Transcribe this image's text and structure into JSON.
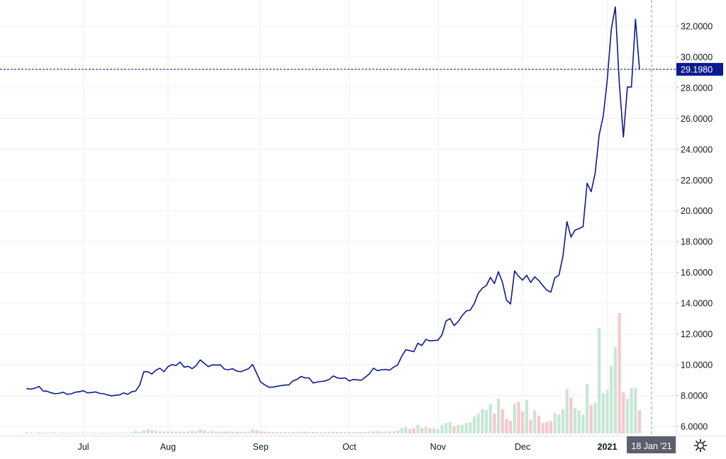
{
  "chart_data": {
    "type": "line",
    "ylim": [
      5.4,
      33.7
    ],
    "y_ticks": [
      "32.0000",
      "30.0000",
      "28.0000",
      "26.0000",
      "24.0000",
      "22.0000",
      "20.0000",
      "18.0000",
      "16.0000",
      "14.0000",
      "12.0000",
      "10.0000",
      "8.0000",
      "6.0000"
    ],
    "x_ticks": [
      {
        "label": "Jul",
        "index": 14
      },
      {
        "label": "Aug",
        "index": 35
      },
      {
        "label": "Sep",
        "index": 58
      },
      {
        "label": "Oct",
        "index": 80
      },
      {
        "label": "Nov",
        "index": 102
      },
      {
        "label": "Dec",
        "index": 123
      },
      {
        "label": "2021",
        "index": 144
      }
    ],
    "crosshair": {
      "y_value": 29.198,
      "y_label": "29.1980",
      "x_label": "18 Jan '21",
      "index": 155
    },
    "series": [
      {
        "values": [
          8.45,
          8.42,
          8.48,
          8.6,
          8.3,
          8.28,
          8.18,
          8.12,
          8.15,
          8.22,
          8.08,
          8.12,
          8.22,
          8.25,
          8.32,
          8.18,
          8.2,
          8.24,
          8.15,
          8.12,
          8.05,
          7.98,
          8.02,
          8.05,
          8.18,
          8.08,
          8.25,
          8.3,
          8.7,
          9.55,
          9.55,
          9.4,
          9.65,
          9.78,
          9.55,
          9.88,
          10.02,
          9.95,
          10.18,
          9.85,
          9.9,
          9.75,
          9.95,
          10.32,
          10.1,
          9.88,
          10.0,
          9.98,
          10.0,
          9.72,
          9.68,
          9.75,
          9.6,
          9.55,
          9.65,
          9.75,
          10.02,
          9.45,
          8.88,
          8.7,
          8.55,
          8.55,
          8.6,
          8.65,
          8.68,
          8.7,
          8.95,
          9.05,
          9.25,
          9.15,
          9.15,
          8.82,
          8.88,
          8.92,
          8.95,
          9.05,
          9.28,
          9.15,
          9.12,
          9.15,
          8.95,
          9.05,
          9.02,
          9.0,
          9.2,
          9.42,
          9.78,
          9.62,
          9.68,
          9.7,
          9.65,
          9.85,
          10.0,
          10.55,
          10.98,
          10.92,
          10.85,
          11.4,
          11.25,
          11.65,
          11.55,
          11.58,
          11.6,
          11.95,
          12.85,
          13.0,
          12.55,
          12.8,
          13.2,
          13.5,
          13.55,
          13.98,
          14.65,
          14.98,
          15.15,
          15.68,
          15.28,
          16.05,
          15.35,
          14.2,
          13.95,
          16.1,
          15.75,
          15.5,
          15.82,
          15.35,
          15.72,
          15.48,
          15.15,
          14.85,
          14.72,
          15.65,
          15.82,
          17.05,
          19.3,
          18.3,
          18.75,
          18.85,
          18.98,
          21.8,
          21.25,
          22.45,
          24.95,
          26.15,
          28.5,
          31.8,
          33.25,
          28.25,
          24.8,
          28.05,
          28.05,
          32.45,
          29.2
        ],
        "volume": [
          0.6,
          0.4,
          0.3,
          0.5,
          0.4,
          0.3,
          0.4,
          0.5,
          0.3,
          0.4,
          0.3,
          0.3,
          0.4,
          0.3,
          0.4,
          0.3,
          0.3,
          0.4,
          0.3,
          0.4,
          0.3,
          0.3,
          0.3,
          0.4,
          0.5,
          0.3,
          0.6,
          1.2,
          0.8,
          1.5,
          2.0,
          1.5,
          1.2,
          1.0,
          0.8,
          0.9,
          0.9,
          0.7,
          0.9,
          0.8,
          1.0,
          1.2,
          1.0,
          2.0,
          1.5,
          0.8,
          1.2,
          0.9,
          0.8,
          0.9,
          1.0,
          0.8,
          0.9,
          0.7,
          0.8,
          0.9,
          2.0,
          1.5,
          1.0,
          0.8,
          0.7,
          0.7,
          0.6,
          0.6,
          0.6,
          0.6,
          0.7,
          0.7,
          0.8,
          0.8,
          0.6,
          0.7,
          0.6,
          0.6,
          0.6,
          0.7,
          0.9,
          0.7,
          0.6,
          0.6,
          0.6,
          0.6,
          0.6,
          0.6,
          0.7,
          0.9,
          1.0,
          1.0,
          0.8,
          0.9,
          0.9,
          1.0,
          1.4,
          2.5,
          3.0,
          2.2,
          2.5,
          4.0,
          2.5,
          3.2,
          2.5,
          2.5,
          2.0,
          4.0,
          5.0,
          5.5,
          3.5,
          4.0,
          4.2,
          5.0,
          5.2,
          8.0,
          9.5,
          11.5,
          11.0,
          14.0,
          9.5,
          16.5,
          11.5,
          7.0,
          6.0,
          14.0,
          15.0,
          10.5,
          16.0,
          6.5,
          11.0,
          8.5,
          5.0,
          5.5,
          6.0,
          9.5,
          9.0,
          11.5,
          21.0,
          17.0,
          12.0,
          11.0,
          9.0,
          23.5,
          13.5,
          14.5,
          50.0,
          19.0,
          20.5,
          32.0,
          41.0,
          57.0,
          19.5,
          16.5,
          21.5,
          21.5,
          11.0
        ]
      }
    ],
    "colors": {
      "line": "#0c1a8e",
      "crosshair_h": "#1f2b9c",
      "crosshair_v": "#9598a1",
      "grid": "#eef0f3",
      "vol_up": "#c8e6d6",
      "vol_down": "#f6c9cc",
      "price_label_bg": "#0c1a8e",
      "time_label_bg": "#5d606b",
      "axis_text": "#131722"
    },
    "grid": true
  },
  "settings_icon": "gear-icon"
}
